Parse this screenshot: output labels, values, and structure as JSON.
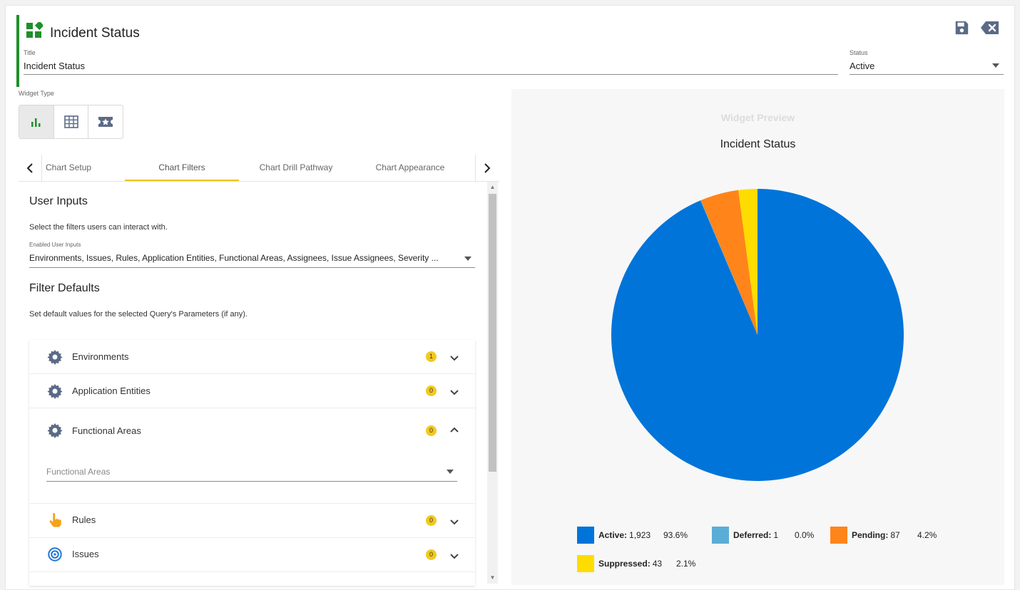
{
  "header": {
    "title": "Incident Status"
  },
  "title_field": {
    "label": "Title",
    "value": "Incident Status"
  },
  "status_field": {
    "label": "Status",
    "value": "Active"
  },
  "widget_type": {
    "label": "Widget Type",
    "options": [
      "bar-chart-icon",
      "table-grid-icon",
      "ticket-star-icon"
    ],
    "selected": "bar-chart-icon"
  },
  "tabs": [
    {
      "label": "Chart Setup"
    },
    {
      "label": "Chart Filters"
    },
    {
      "label": "Chart Drill Pathway"
    },
    {
      "label": "Chart Appearance"
    }
  ],
  "active_tab": "Chart Filters",
  "user_inputs": {
    "heading": "User Inputs",
    "description": "Select the filters users can interact with.",
    "enabled_label": "Enabled User Inputs",
    "enabled_value": "Environments, Issues, Rules, Application Entities, Functional Areas, Assignees, Issue Assignees, Severity ..."
  },
  "filter_defaults": {
    "heading": "Filter Defaults",
    "description": "Set default values for the selected Query's Parameters (if any).",
    "items": [
      {
        "label": "Environments",
        "count": "1",
        "icon": "gear-icon",
        "expanded": false
      },
      {
        "label": "Application Entities",
        "count": "0",
        "icon": "gear-icon",
        "expanded": false
      },
      {
        "label": "Functional Areas",
        "count": "0",
        "icon": "gear-icon",
        "expanded": true,
        "placeholder": "Functional Areas"
      },
      {
        "label": "Rules",
        "count": "0",
        "icon": "pointing-hand-icon",
        "expanded": false
      },
      {
        "label": "Issues",
        "count": "0",
        "icon": "target-icon",
        "expanded": false
      }
    ]
  },
  "preview": {
    "caption": "Widget Preview",
    "title": "Incident Status"
  },
  "chart_data": {
    "type": "pie",
    "title": "Incident Status",
    "series": [
      {
        "name": "Active",
        "value": 1923,
        "display": "1,923",
        "percent": "93.6%",
        "color": "#0074d9"
      },
      {
        "name": "Deferred",
        "value": 1,
        "display": "1",
        "percent": "0.0%",
        "color": "#5aaed6"
      },
      {
        "name": "Pending",
        "value": 87,
        "display": "87",
        "percent": "4.2%",
        "color": "#ff851b"
      },
      {
        "name": "Suppressed",
        "value": 43,
        "display": "43",
        "percent": "2.1%",
        "color": "#ffdc00"
      }
    ],
    "legend": "bottom"
  },
  "colors": {
    "accent": "#1f8f2a",
    "tab_underline": "#f0c419",
    "badge": "#f2c91e",
    "icon_slate": "#5b6a86"
  }
}
